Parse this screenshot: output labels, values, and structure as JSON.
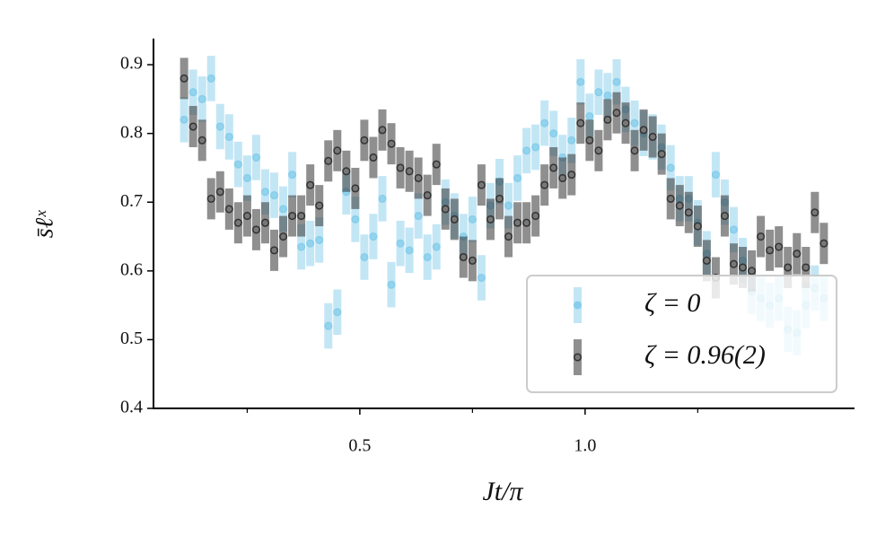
{
  "chart_data": {
    "type": "errorbar-scatter",
    "xlabel": "Jt/π",
    "ylabel": "s̄ℓˣ",
    "x": [
      0.11,
      0.13,
      0.15,
      0.17,
      0.19,
      0.21,
      0.23,
      0.25,
      0.27,
      0.29,
      0.31,
      0.33,
      0.35,
      0.37,
      0.39,
      0.41,
      0.43,
      0.45,
      0.47,
      0.49,
      0.51,
      0.53,
      0.55,
      0.57,
      0.59,
      0.61,
      0.63,
      0.65,
      0.67,
      0.69,
      0.71,
      0.73,
      0.75,
      0.77,
      0.79,
      0.81,
      0.83,
      0.85,
      0.87,
      0.89,
      0.91,
      0.93,
      0.95,
      0.97,
      0.99,
      1.01,
      1.03,
      1.05,
      1.07,
      1.09,
      1.11,
      1.13,
      1.15,
      1.17,
      1.19,
      1.21,
      1.23,
      1.25,
      1.27,
      1.29,
      1.31,
      1.33,
      1.35,
      1.37,
      1.39,
      1.41,
      1.43,
      1.45,
      1.47,
      1.49,
      1.51,
      1.53
    ],
    "series": [
      {
        "name": "ζ = 0",
        "color": "#87ceeb",
        "yerr": 0.033,
        "values": [
          0.82,
          0.86,
          0.85,
          0.88,
          0.81,
          0.795,
          0.755,
          0.735,
          0.765,
          0.715,
          0.71,
          0.69,
          0.74,
          0.635,
          0.64,
          0.645,
          0.52,
          0.54,
          0.715,
          0.675,
          0.62,
          0.65,
          0.705,
          0.58,
          0.64,
          0.63,
          0.68,
          0.62,
          0.635,
          0.7,
          0.68,
          0.65,
          0.675,
          0.59,
          0.695,
          0.73,
          0.695,
          0.735,
          0.775,
          0.78,
          0.815,
          0.8,
          0.765,
          0.79,
          0.875,
          0.825,
          0.86,
          0.855,
          0.875,
          0.835,
          0.815,
          0.8,
          0.795,
          0.78,
          0.75,
          0.705,
          0.705,
          0.67,
          0.625,
          0.74,
          0.7,
          0.66,
          0.615,
          0.57,
          0.56,
          0.55,
          0.56,
          0.515,
          0.51,
          0.55,
          0.575,
          0.56
        ]
      },
      {
        "name": "ζ = 0.96(2)",
        "color": "#333333",
        "yerr": 0.03,
        "values": [
          0.88,
          0.81,
          0.79,
          0.705,
          0.715,
          0.69,
          0.67,
          0.68,
          0.66,
          0.67,
          0.63,
          0.65,
          0.68,
          0.68,
          0.725,
          0.695,
          0.76,
          0.775,
          0.745,
          0.72,
          0.79,
          0.765,
          0.805,
          0.785,
          0.75,
          0.745,
          0.735,
          0.71,
          0.755,
          0.69,
          0.675,
          0.62,
          0.615,
          0.725,
          0.675,
          0.705,
          0.65,
          0.67,
          0.67,
          0.68,
          0.725,
          0.75,
          0.735,
          0.74,
          0.815,
          0.79,
          0.775,
          0.82,
          0.83,
          0.815,
          0.775,
          0.805,
          0.795,
          0.77,
          0.705,
          0.695,
          0.685,
          0.665,
          0.615,
          0.59,
          0.68,
          0.61,
          0.605,
          0.6,
          0.65,
          0.63,
          0.635,
          0.605,
          0.625,
          0.605,
          0.685,
          0.64
        ]
      }
    ],
    "xlim": [
      0.042,
      1.598
    ],
    "ylim": [
      0.4,
      0.938
    ],
    "xticks": [
      0.5,
      {
        "value": 1,
        "label": "1.0"
      }
    ],
    "xminorticks": [
      0.25,
      0.75,
      1.25
    ],
    "yticks": [
      0.4,
      0.5,
      0.6,
      0.7,
      0.8,
      0.9
    ],
    "legend": "lower right"
  }
}
